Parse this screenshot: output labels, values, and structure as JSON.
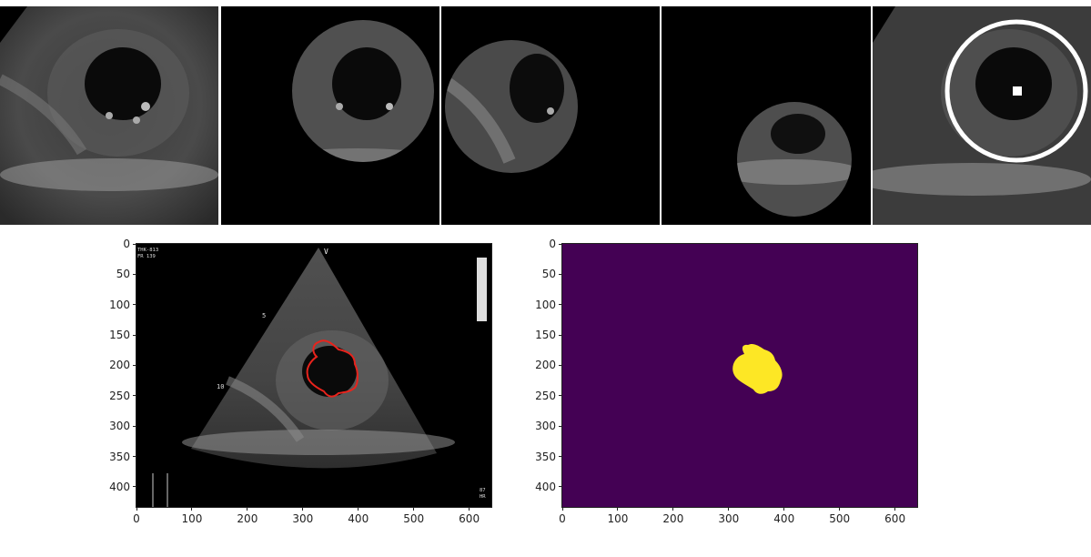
{
  "colors": {
    "mask_background": "#440154",
    "mask_foreground": "#fde725",
    "contour": "#e8231c",
    "ring": "#ffffff"
  },
  "top_strip": {
    "tiles": [
      {
        "name": "original-crop"
      },
      {
        "name": "circular-crop-1"
      },
      {
        "name": "circular-crop-2"
      },
      {
        "name": "circular-crop-3"
      },
      {
        "name": "roi-circle-overlay"
      }
    ]
  },
  "left_plot": {
    "overlay_text": {
      "header_line1": "THK-813",
      "header_line2": "FR 139",
      "marker_v": "V",
      "depth_5": "5",
      "depth_10": "10",
      "footer_bpm": "87",
      "footer_hr": "HR"
    },
    "x_ticks": [
      "0",
      "100",
      "200",
      "300",
      "400",
      "500",
      "600"
    ],
    "y_ticks": [
      "0",
      "50",
      "100",
      "150",
      "200",
      "250",
      "300",
      "350",
      "400"
    ]
  },
  "right_plot": {
    "x_ticks": [
      "0",
      "100",
      "200",
      "300",
      "400",
      "500",
      "600"
    ],
    "y_ticks": [
      "0",
      "50",
      "100",
      "150",
      "200",
      "250",
      "300",
      "350",
      "400"
    ]
  },
  "axis_range": {
    "x": [
      0,
      640
    ],
    "y": [
      0,
      433
    ]
  }
}
